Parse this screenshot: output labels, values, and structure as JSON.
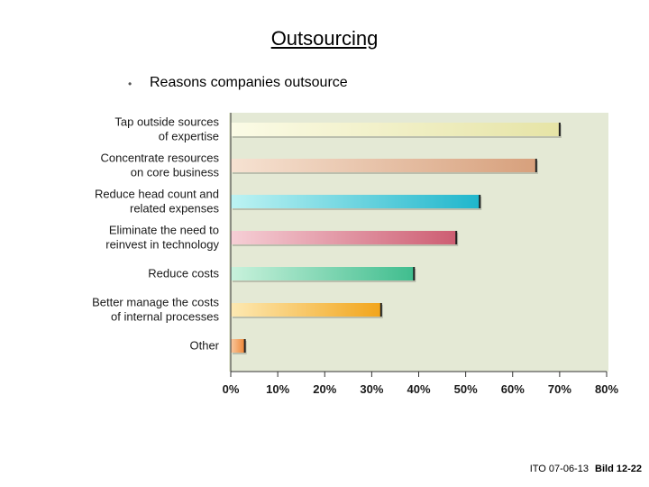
{
  "slide": {
    "title": "Outsourcing",
    "bullet": "Reasons companies outsource"
  },
  "footer": {
    "left": "ITO  07-06-13",
    "right": "Bild 12-22"
  },
  "chart_data": {
    "type": "bar",
    "orientation": "horizontal",
    "title": "",
    "xlabel": "",
    "ylabel": "",
    "xlim": [
      0,
      80
    ],
    "xticks": [
      "0%",
      "10%",
      "20%",
      "30%",
      "40%",
      "50%",
      "60%",
      "70%",
      "80%"
    ],
    "grid": false,
    "categories": [
      [
        "Tap outside sources",
        "of expertise"
      ],
      [
        "Concentrate resources",
        "on core business"
      ],
      [
        "Reduce head count and",
        "related expenses"
      ],
      [
        "Eliminate the need to",
        "reinvest in technology"
      ],
      [
        "Reduce costs"
      ],
      [
        "Better manage the costs",
        "of internal processes"
      ],
      [
        "Other"
      ]
    ],
    "values": [
      70,
      65,
      53,
      48,
      39,
      32,
      3
    ],
    "colors": [
      [
        "#fbfbe6",
        "#e6e4a6"
      ],
      [
        "#f6e2d2",
        "#d7a07c"
      ],
      [
        "#bdf3f3",
        "#1fb6cc"
      ],
      [
        "#f6cfd6",
        "#cd5d72"
      ],
      [
        "#c9f2dc",
        "#3fbd8e"
      ],
      [
        "#fde9b3",
        "#f2a51b"
      ],
      [
        "#f9c9a0",
        "#ee8636"
      ]
    ],
    "plot_background": "#e4e9d5"
  }
}
